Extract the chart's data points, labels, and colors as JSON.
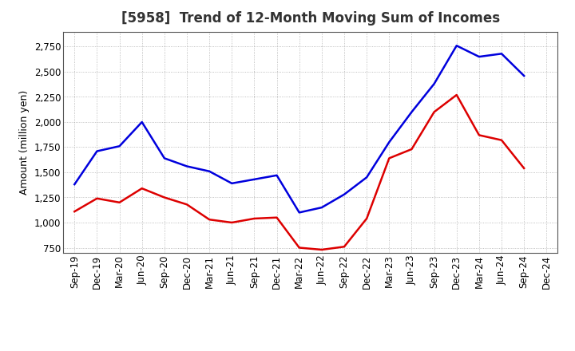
{
  "title": "[5958]  Trend of 12-Month Moving Sum of Incomes",
  "ylabel": "Amount (million yen)",
  "x_labels": [
    "Sep-19",
    "Dec-19",
    "Mar-20",
    "Jun-20",
    "Sep-20",
    "Dec-20",
    "Mar-21",
    "Jun-21",
    "Sep-21",
    "Dec-21",
    "Mar-22",
    "Jun-22",
    "Sep-22",
    "Dec-22",
    "Mar-23",
    "Jun-23",
    "Sep-23",
    "Dec-23",
    "Mar-24",
    "Jun-24",
    "Sep-24",
    "Dec-24"
  ],
  "ordinary_income": [
    1380,
    1710,
    1760,
    2000,
    1640,
    1560,
    1510,
    1390,
    1430,
    1470,
    1100,
    1150,
    1280,
    1450,
    1800,
    2100,
    2380,
    2760,
    2650,
    2680,
    2460,
    null
  ],
  "net_income": [
    1110,
    1240,
    1200,
    1340,
    1250,
    1180,
    1030,
    1000,
    1040,
    1050,
    750,
    730,
    760,
    1040,
    1640,
    1730,
    2100,
    2270,
    1870,
    1820,
    1540,
    null
  ],
  "ordinary_color": "#0000dd",
  "net_color": "#dd0000",
  "background_color": "#ffffff",
  "grid_color": "#999999",
  "ylim": [
    700,
    2900
  ],
  "yticks": [
    750,
    1000,
    1250,
    1500,
    1750,
    2000,
    2250,
    2500,
    2750
  ],
  "title_fontsize": 12,
  "title_color": "#333333",
  "axis_fontsize": 9,
  "tick_fontsize": 8.5,
  "legend_fontsize": 9.5,
  "line_width": 1.8
}
